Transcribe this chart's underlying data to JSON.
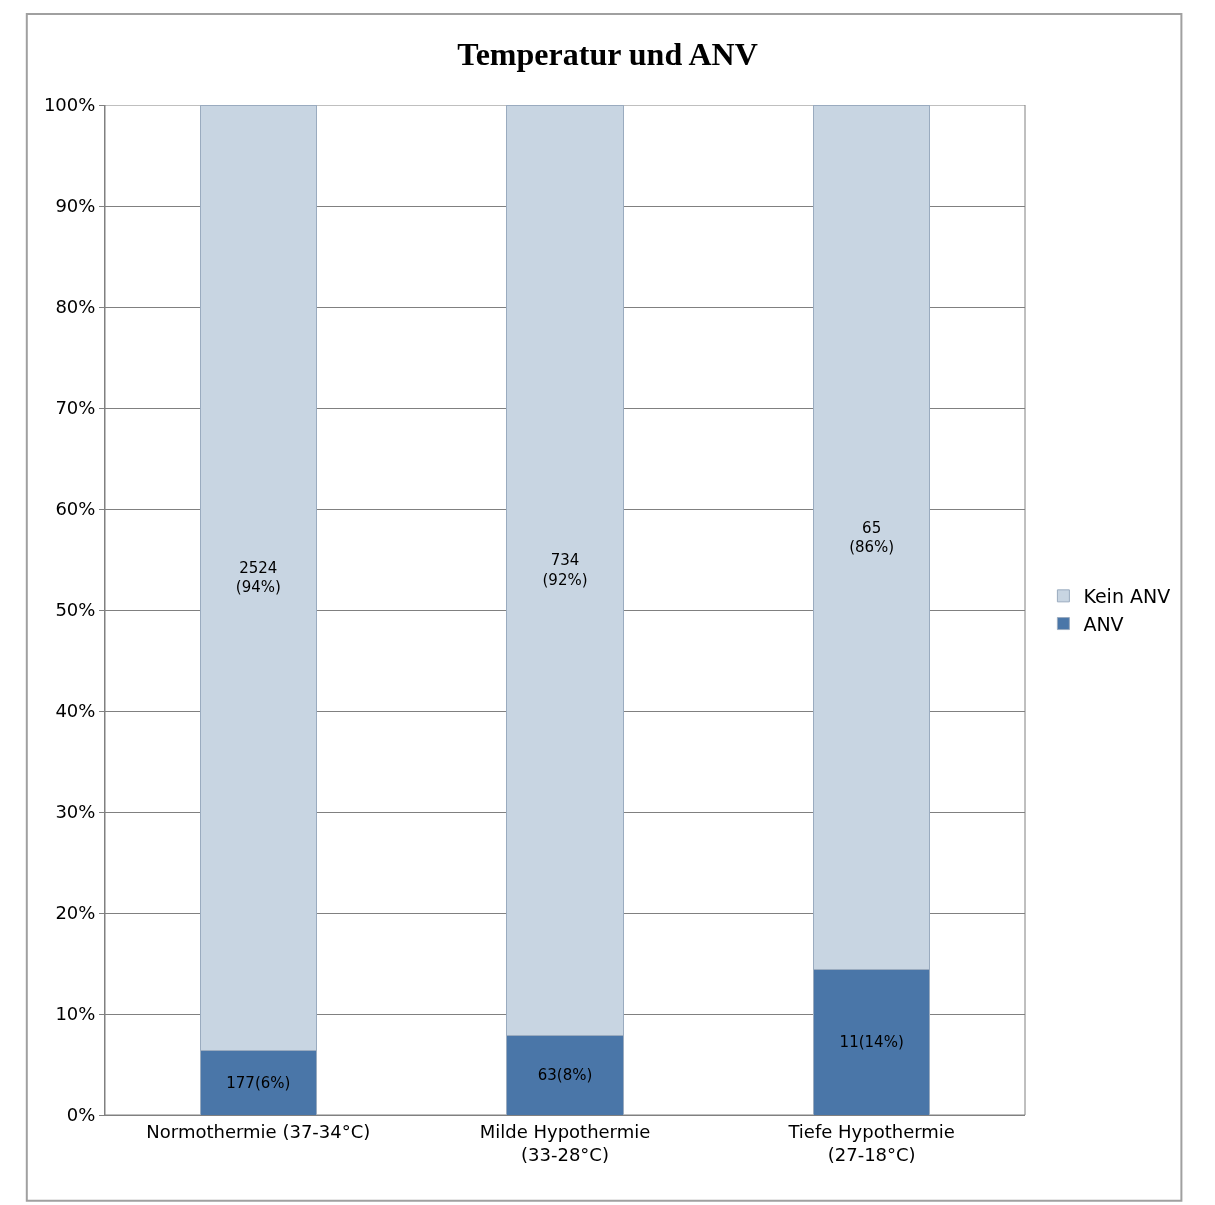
{
  "chart_data": {
    "type": "bar",
    "title": "Temperatur und ANV",
    "stacked": true,
    "categories": [
      "Normothermie (37-34°C)",
      "Milde Hypothermie (33-28°C)",
      "Tiefe Hypothermie (27-18°C)"
    ],
    "series": [
      {
        "name": "ANV",
        "color": "#4a76a8",
        "values": [
          6.4,
          7.9,
          14.4
        ],
        "value_labels": [
          "177(6%)",
          "63(8%)",
          "11(14%)"
        ]
      },
      {
        "name": "Kein ANV",
        "color": "#c8d5e2",
        "values": [
          93.6,
          92.1,
          85.6
        ],
        "value_labels": [
          "2524\n(94%)",
          "734\n(92%)",
          "65\n(86%)"
        ]
      }
    ],
    "ylim": [
      0,
      100
    ],
    "yticks": [
      {
        "value": 0,
        "label": "0%"
      },
      {
        "value": 10,
        "label": "10%"
      },
      {
        "value": 20,
        "label": "20%"
      },
      {
        "value": 30,
        "label": "30%"
      },
      {
        "value": 40,
        "label": "40%"
      },
      {
        "value": 50,
        "label": "50%"
      },
      {
        "value": 60,
        "label": "60%"
      },
      {
        "value": 70,
        "label": "70%"
      },
      {
        "value": 80,
        "label": "80%"
      },
      {
        "value": 90,
        "label": "90%"
      },
      {
        "value": 100,
        "label": "100%"
      }
    ],
    "grid": "y",
    "legend": "right"
  }
}
